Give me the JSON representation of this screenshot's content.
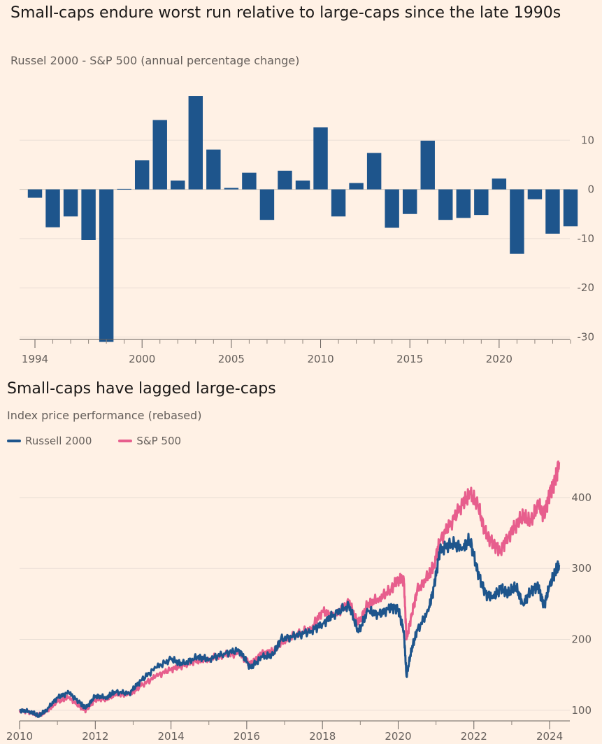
{
  "chart_data": [
    {
      "type": "bar",
      "title": "Small-caps endure worst run relative to large-caps since the late 1990s",
      "subtitle": "Russel 2000 - S&P 500 (annual percentage change)",
      "categories": [
        "1994",
        "1995",
        "1996",
        "1997",
        "1998",
        "1999",
        "2000",
        "2001",
        "2002",
        "2003",
        "2004",
        "2005",
        "2006",
        "2007",
        "2008",
        "2009",
        "2010",
        "2011",
        "2012",
        "2013",
        "2014",
        "2015",
        "2016",
        "2017",
        "2018",
        "2019",
        "2020",
        "2021",
        "2022",
        "2023",
        "2024"
      ],
      "values": [
        -1.7,
        -7.7,
        -5.5,
        -10.3,
        -31.0,
        0.1,
        5.9,
        14.1,
        1.8,
        19.0,
        8.1,
        0.3,
        3.4,
        -6.2,
        3.8,
        1.8,
        12.6,
        -5.5,
        1.3,
        7.4,
        -7.8,
        -5.0,
        9.9,
        -6.2,
        -5.8,
        -5.2,
        2.2,
        -13.1,
        -2.0,
        -9.0,
        -7.5
      ],
      "ylim": [
        -30.5,
        20
      ],
      "yticks": [
        10,
        0,
        -10,
        -20,
        -30
      ],
      "xticks": [
        "1994",
        "2000",
        "2005",
        "2010",
        "2015",
        "2020"
      ],
      "grid": true,
      "color": "#1E558C"
    },
    {
      "type": "line",
      "title": "Small-caps have lagged large-caps",
      "subtitle": "Index price performance (rebased)",
      "xlabel": "",
      "ylabel": "",
      "xlim": [
        2010,
        2024.35
      ],
      "ylim": [
        85,
        470
      ],
      "yticks": [
        100,
        200,
        300,
        400
      ],
      "xticks": [
        2010,
        2012,
        2014,
        2016,
        2018,
        2020,
        2022,
        2024
      ],
      "grid": true,
      "legend": "top-left",
      "series": [
        {
          "name": "Russell 2000",
          "color": "#1E558C",
          "x": [
            2010,
            2010.3,
            2010.5,
            2010.7,
            2011.0,
            2011.3,
            2011.6,
            2011.75,
            2012.0,
            2012.3,
            2012.5,
            2012.9,
            2013.2,
            2013.6,
            2014.0,
            2014.3,
            2014.7,
            2015.0,
            2015.4,
            2015.8,
            2016.1,
            2016.4,
            2016.7,
            2016.9,
            2017.3,
            2017.7,
            2018.0,
            2018.3,
            2018.7,
            2018.95,
            2019.2,
            2019.5,
            2019.8,
            2020.0,
            2020.15,
            2020.22,
            2020.35,
            2020.5,
            2020.8,
            2020.95,
            2021.1,
            2021.4,
            2021.7,
            2021.9,
            2022.1,
            2022.3,
            2022.5,
            2022.7,
            2022.9,
            2023.1,
            2023.3,
            2023.5,
            2023.7,
            2023.85,
            2024.0,
            2024.15,
            2024.25
          ],
          "y": [
            100,
            98,
            92,
            100,
            118,
            125,
            110,
            103,
            120,
            118,
            126,
            124,
            142,
            160,
            172,
            165,
            175,
            172,
            180,
            185,
            160,
            175,
            178,
            200,
            205,
            212,
            222,
            235,
            248,
            210,
            240,
            235,
            245,
            243,
            212,
            148,
            185,
            212,
            240,
            275,
            325,
            335,
            330,
            340,
            295,
            265,
            258,
            272,
            265,
            275,
            250,
            268,
            275,
            247,
            275,
            295,
            305
          ]
        },
        {
          "name": "S&P 500",
          "color": "#E75E8D",
          "x": [
            2010,
            2010.3,
            2010.5,
            2010.7,
            2011.0,
            2011.3,
            2011.6,
            2011.75,
            2012.0,
            2012.3,
            2012.5,
            2012.9,
            2013.2,
            2013.6,
            2014.0,
            2014.3,
            2014.7,
            2015.0,
            2015.4,
            2015.8,
            2016.1,
            2016.4,
            2016.7,
            2016.9,
            2017.3,
            2017.7,
            2018.0,
            2018.3,
            2018.7,
            2018.95,
            2019.2,
            2019.5,
            2019.8,
            2020.0,
            2020.15,
            2020.22,
            2020.35,
            2020.5,
            2020.8,
            2020.95,
            2021.1,
            2021.4,
            2021.7,
            2021.9,
            2022.1,
            2022.3,
            2022.5,
            2022.7,
            2022.9,
            2023.1,
            2023.3,
            2023.5,
            2023.7,
            2023.85,
            2024.0,
            2024.15,
            2024.25
          ],
          "y": [
            100,
            97,
            93,
            98,
            112,
            118,
            105,
            100,
            115,
            116,
            122,
            122,
            134,
            148,
            158,
            163,
            170,
            172,
            178,
            180,
            165,
            180,
            183,
            195,
            207,
            215,
            240,
            232,
            253,
            222,
            250,
            258,
            270,
            285,
            285,
            200,
            232,
            268,
            290,
            305,
            340,
            365,
            392,
            405,
            390,
            350,
            335,
            325,
            345,
            360,
            375,
            365,
            390,
            375,
            405,
            425,
            450
          ]
        }
      ]
    }
  ]
}
